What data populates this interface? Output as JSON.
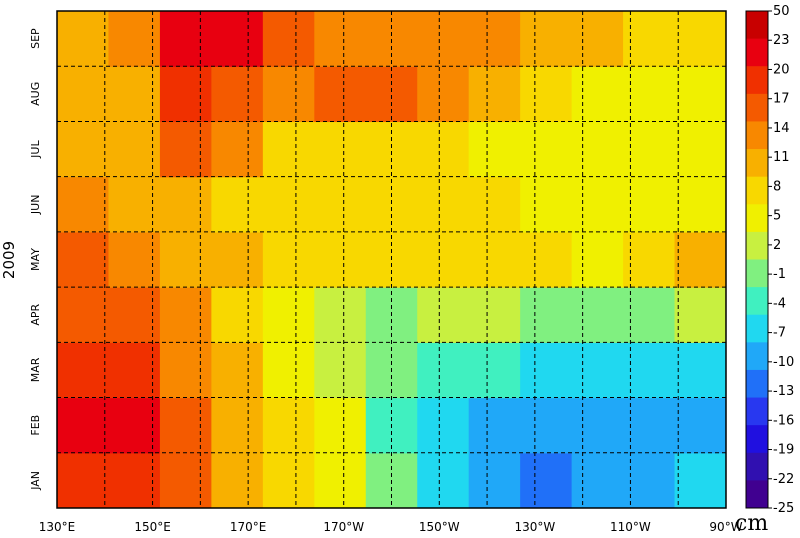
{
  "chart_data": {
    "type": "heatmap",
    "title": "",
    "ylabel": "2009",
    "unit_label": "cm",
    "x_ticks": [
      "130°E",
      "150°E",
      "170°E",
      "170°W",
      "150°W",
      "130°W",
      "110°W",
      "90°W"
    ],
    "x_range": [
      "130°E",
      "90°W"
    ],
    "y_months": [
      "JAN",
      "FEB",
      "MAR",
      "APR",
      "MAY",
      "JUN",
      "JUL",
      "AUG",
      "SEP"
    ],
    "grid": true,
    "grid_style": "dashed",
    "colorbar_labels": [
      "50",
      "23",
      "20",
      "17",
      "14",
      "11",
      "8",
      "5",
      "2",
      "-1",
      "-4",
      "-7",
      "-10",
      "-13",
      "-16",
      "-19",
      "-22",
      "-25"
    ],
    "colorbar_colors": [
      "#c80000",
      "#e80010",
      "#f03000",
      "#f45a00",
      "#f88800",
      "#f8b000",
      "#f8d800",
      "#f0f000",
      "#c8f040",
      "#80f080",
      "#40f0c0",
      "#20d8f0",
      "#20a8f8",
      "#2070f8",
      "#2838f0",
      "#2010e0",
      "#3010b0",
      "#400090"
    ],
    "values_description_rows_months_JAN_to_SEP_cols_lon_130E_to_90W": [
      [
        17,
        17,
        14,
        8,
        5,
        2,
        -4,
        -10,
        -13,
        -16,
        -13,
        -13,
        -10
      ],
      [
        20,
        20,
        14,
        8,
        5,
        2,
        -7,
        -10,
        -13,
        -13,
        -13,
        -13,
        -13
      ],
      [
        17,
        17,
        11,
        8,
        2,
        -1,
        -4,
        -7,
        -7,
        -10,
        -10,
        -10,
        -10
      ],
      [
        14,
        14,
        11,
        5,
        2,
        -1,
        -4,
        -1,
        -1,
        -4,
        -4,
        -4,
        -1
      ],
      [
        14,
        11,
        8,
        8,
        5,
        5,
        5,
        5,
        5,
        5,
        2,
        5,
        8
      ],
      [
        11,
        8,
        8,
        5,
        5,
        5,
        5,
        5,
        5,
        2,
        2,
        2,
        2
      ],
      [
        8,
        8,
        14,
        11,
        5,
        5,
        5,
        5,
        2,
        2,
        2,
        2,
        2
      ],
      [
        8,
        8,
        17,
        14,
        11,
        14,
        14,
        11,
        8,
        5,
        2,
        2,
        2
      ],
      [
        8,
        11,
        20,
        20,
        14,
        11,
        11,
        11,
        11,
        8,
        8,
        5,
        5
      ]
    ]
  }
}
